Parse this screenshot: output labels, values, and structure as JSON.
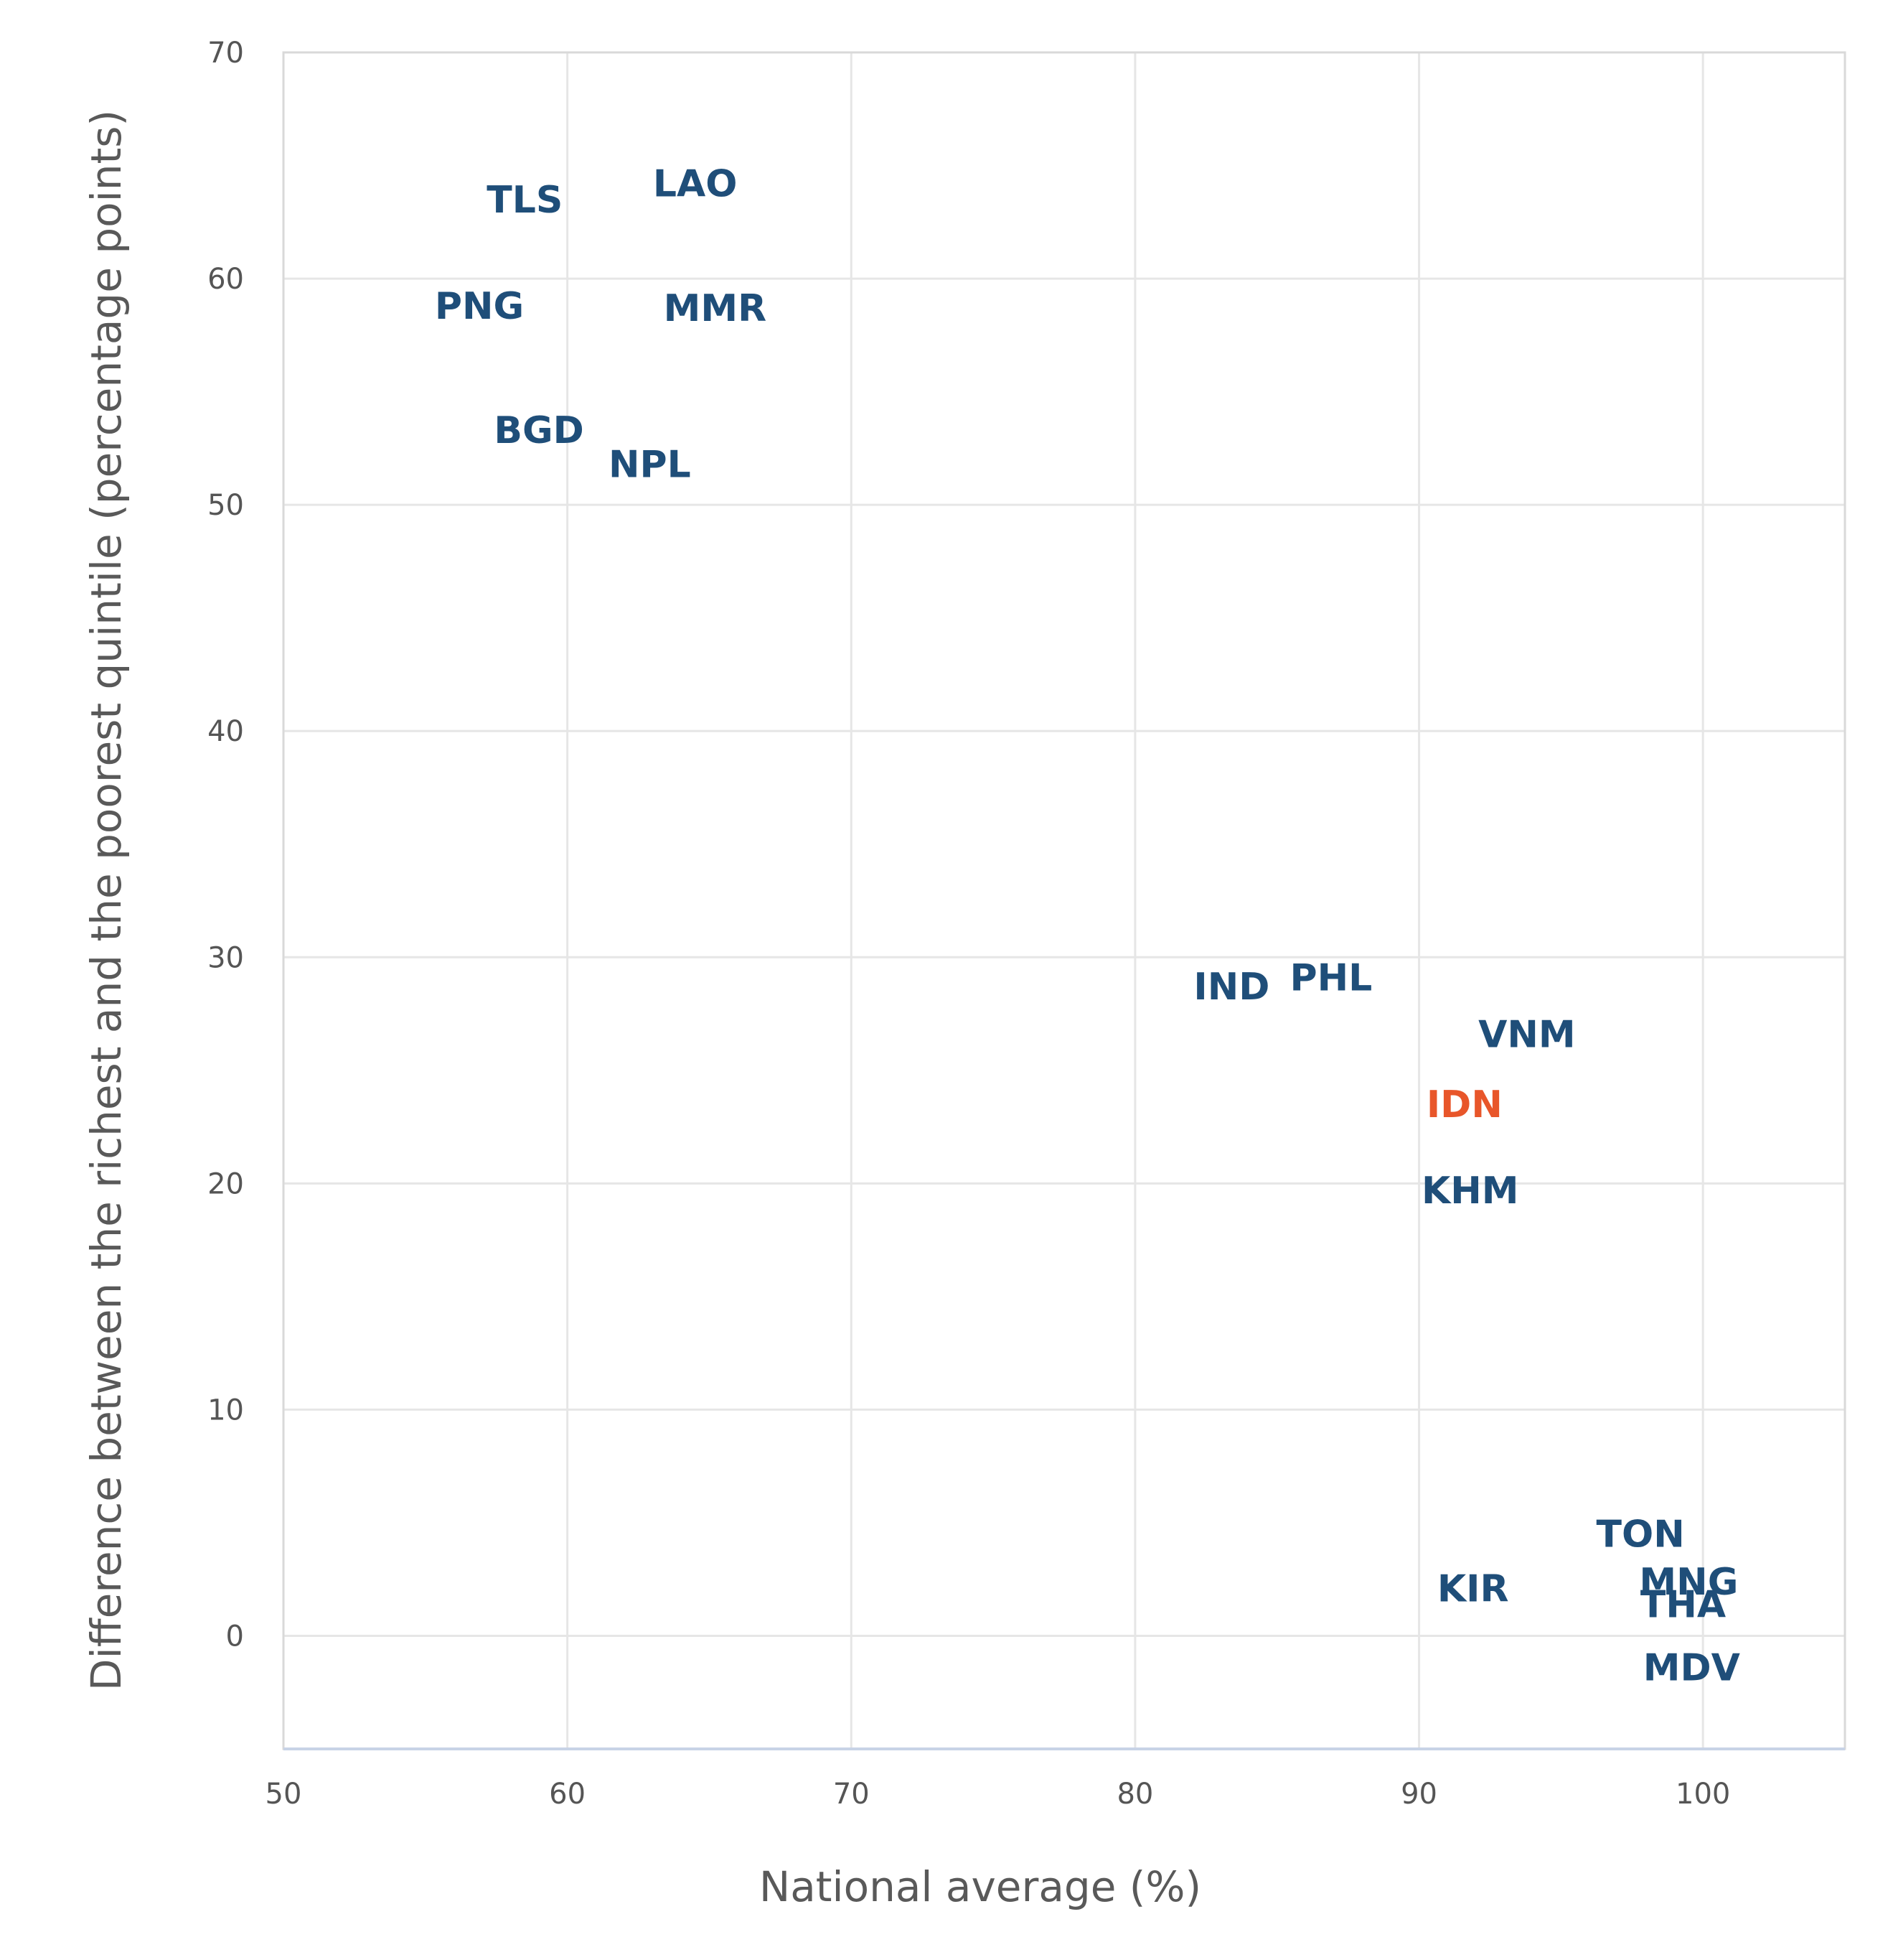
{
  "chart_data": {
    "type": "scatter",
    "title": "",
    "xlabel": "National average (%)",
    "ylabel": "Difference between the richest and the poorest quintile (percentage points)",
    "xlim": [
      50,
      105
    ],
    "ylim": [
      -5,
      70
    ],
    "xticks": [
      50,
      60,
      70,
      80,
      90,
      100
    ],
    "yticks": [
      0,
      10,
      20,
      30,
      40,
      50,
      60,
      70
    ],
    "grid": true,
    "marker": "text-label",
    "colors": {
      "default": "#1f4e79",
      "highlight": "#e8562a"
    },
    "points": [
      {
        "label": "TLS",
        "x": 58.5,
        "y": 63.5,
        "highlight": false
      },
      {
        "label": "LAO",
        "x": 64.5,
        "y": 64.2,
        "highlight": false
      },
      {
        "label": "PNG",
        "x": 56.9,
        "y": 58.8,
        "highlight": false
      },
      {
        "label": "MMR",
        "x": 65.2,
        "y": 58.7,
        "highlight": false
      },
      {
        "label": "BGD",
        "x": 59.0,
        "y": 53.3,
        "highlight": false
      },
      {
        "label": "NPL",
        "x": 62.9,
        "y": 51.8,
        "highlight": false
      },
      {
        "label": "IND",
        "x": 83.4,
        "y": 28.7,
        "highlight": false
      },
      {
        "label": "PHL",
        "x": 86.9,
        "y": 29.1,
        "highlight": false
      },
      {
        "label": "VNM",
        "x": 93.8,
        "y": 26.6,
        "highlight": false
      },
      {
        "label": "IDN",
        "x": 91.6,
        "y": 23.5,
        "highlight": true
      },
      {
        "label": "KHM",
        "x": 91.8,
        "y": 19.7,
        "highlight": false
      },
      {
        "label": "TON",
        "x": 97.8,
        "y": 4.5,
        "highlight": false
      },
      {
        "label": "KIR",
        "x": 91.9,
        "y": 2.1,
        "highlight": false
      },
      {
        "label": "MNG",
        "x": 99.5,
        "y": 2.4,
        "highlight": false
      },
      {
        "label": "THA",
        "x": 99.3,
        "y": 1.4,
        "highlight": false
      },
      {
        "label": "MDV",
        "x": 99.6,
        "y": -1.4,
        "highlight": false
      }
    ]
  }
}
